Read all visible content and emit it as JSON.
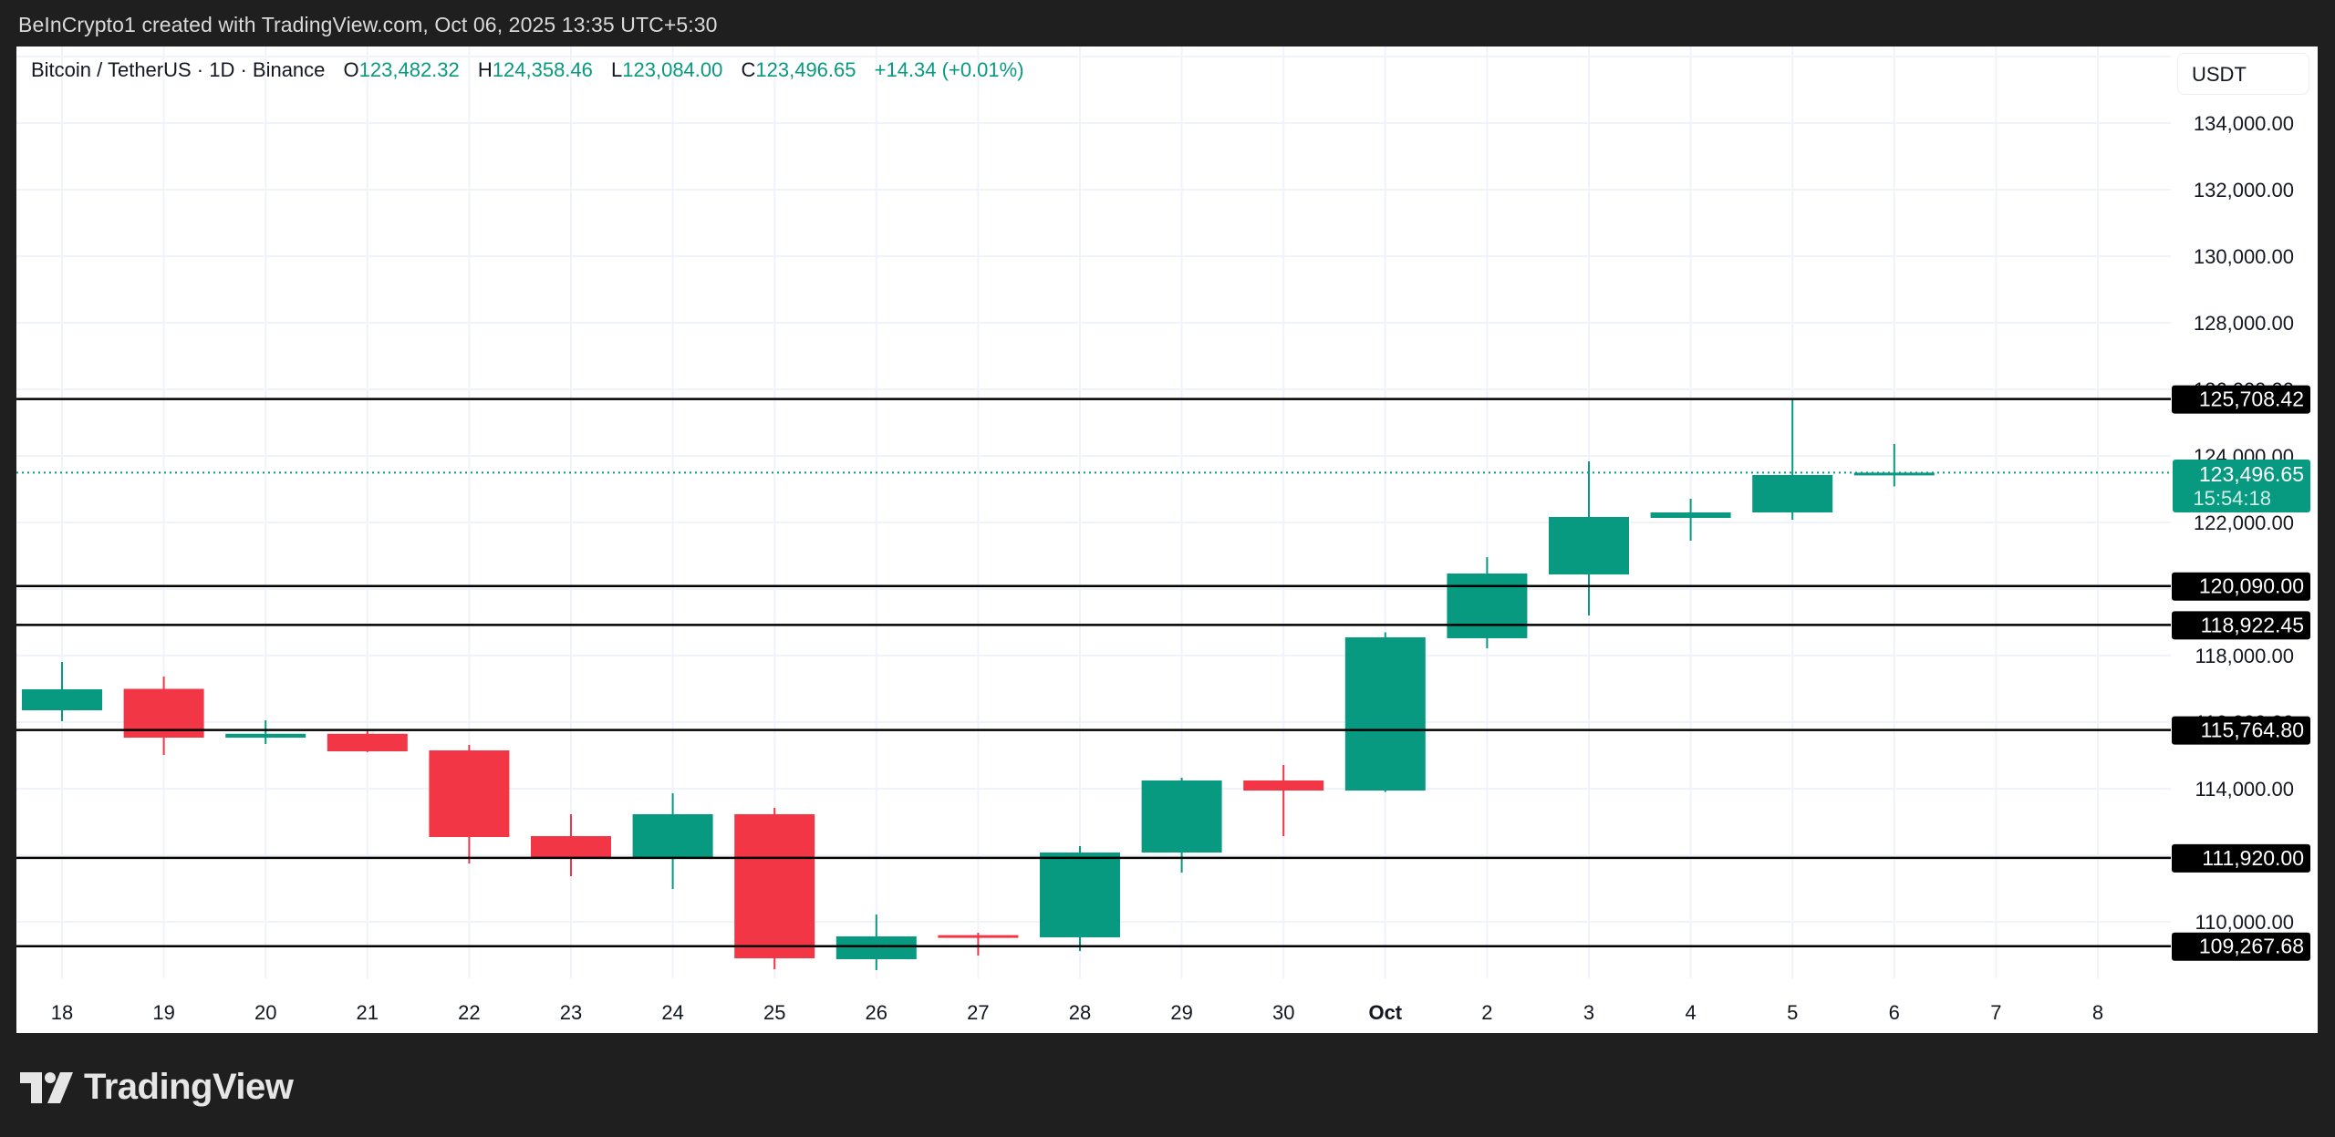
{
  "header": {
    "caption": "BeInCrypto1 created with TradingView.com, Oct 06, 2025 13:35 UTC+5:30"
  },
  "legend": {
    "symbol": "Bitcoin / TetherUS · 1D · Binance",
    "open_label": "O",
    "open": "123,482.32",
    "high_label": "H",
    "high": "124,358.46",
    "low_label": "L",
    "low": "123,084.00",
    "close_label": "C",
    "close": "123,496.65",
    "change": "+14.34 (+0.01%)"
  },
  "price_axis": {
    "currency": "USDT",
    "ticks": [
      "134,000.00",
      "132,000.00",
      "130,000.00",
      "128,000.00",
      "126,000.00",
      "124,000.00",
      "122,000.00",
      "118,000.00",
      "116,000.00",
      "114,000.00",
      "110,000.00"
    ],
    "current_price": "123,496.65",
    "countdown": "15:54:18"
  },
  "watermark": {
    "text": "TradingView"
  },
  "colors": {
    "up": "#089981",
    "down": "#f23645",
    "level_line": "#000000",
    "grid": "#f0f3fa",
    "axis_text": "#131722"
  },
  "chart_data": {
    "type": "candlestick",
    "title": "Bitcoin / TetherUS · 1D · Binance",
    "xlabel": "",
    "ylabel": "USDT",
    "ylim": [
      106500,
      136500
    ],
    "grid": true,
    "x_ticks": [
      "18",
      "19",
      "20",
      "21",
      "22",
      "23",
      "24",
      "25",
      "26",
      "27",
      "28",
      "29",
      "30",
      "Oct",
      "2",
      "3",
      "4",
      "5",
      "6",
      "7",
      "8"
    ],
    "y_ticks": [
      110000,
      112000,
      114000,
      116000,
      118000,
      120000,
      122000,
      124000,
      126000,
      128000,
      130000,
      132000,
      134000,
      136000
    ],
    "candles": [
      {
        "date": "Sep 18",
        "open": 116356,
        "high": 117808,
        "low": 116027,
        "close": 116986
      },
      {
        "date": "Sep 19",
        "open": 117000,
        "high": 117370,
        "low": 115014,
        "close": 115534
      },
      {
        "date": "Sep 20",
        "open": 115534,
        "high": 116055,
        "low": 115342,
        "close": 115650
      },
      {
        "date": "Sep 21",
        "open": 115650,
        "high": 115726,
        "low": 115100,
        "close": 115123
      },
      {
        "date": "Sep 22",
        "open": 115151,
        "high": 115315,
        "low": 111753,
        "close": 112548
      },
      {
        "date": "Sep 23",
        "open": 112575,
        "high": 113233,
        "low": 111370,
        "close": 111890
      },
      {
        "date": "Sep 24",
        "open": 111890,
        "high": 113863,
        "low": 110986,
        "close": 113233
      },
      {
        "date": "Sep 25",
        "open": 113233,
        "high": 113425,
        "low": 108575,
        "close": 108904
      },
      {
        "date": "Sep 26",
        "open": 108877,
        "high": 110219,
        "low": 108548,
        "close": 109562
      },
      {
        "date": "Sep 27",
        "open": 109600,
        "high": 109671,
        "low": 108986,
        "close": 109550
      },
      {
        "date": "Sep 28",
        "open": 109534,
        "high": 112274,
        "low": 109123,
        "close": 112082
      },
      {
        "date": "Sep 29",
        "open": 112082,
        "high": 114329,
        "low": 111479,
        "close": 114247
      },
      {
        "date": "Sep 30",
        "open": 114247,
        "high": 114712,
        "low": 112575,
        "close": 113945
      },
      {
        "date": "Oct 1",
        "open": 113945,
        "high": 118700,
        "low": 113900,
        "close": 118548
      },
      {
        "date": "Oct 2",
        "open": 118521,
        "high": 120959,
        "low": 118219,
        "close": 120466
      },
      {
        "date": "Oct 3",
        "open": 120438,
        "high": 123836,
        "low": 119205,
        "close": 122164
      },
      {
        "date": "Oct 4",
        "open": 122137,
        "high": 122712,
        "low": 121452,
        "close": 122301
      },
      {
        "date": "Oct 5",
        "open": 122301,
        "high": 125708,
        "low": 122082,
        "close": 123425
      },
      {
        "date": "Oct 6",
        "open": 123482.32,
        "high": 124358.46,
        "low": 123084.0,
        "close": 123496.65
      }
    ],
    "horizontal_levels": [
      {
        "label": "125,708.42",
        "value": 125708.42
      },
      {
        "label": "120,090.00",
        "value": 120090.0
      },
      {
        "label": "118,922.45",
        "value": 118922.45
      },
      {
        "label": "115,764.80",
        "value": 115764.8
      },
      {
        "label": "111,920.00",
        "value": 111920.0
      },
      {
        "label": "109,267.68",
        "value": 109267.68
      }
    ],
    "current_price": {
      "value": 123496.65,
      "label": "123,496.65",
      "countdown": "15:54:18"
    }
  }
}
